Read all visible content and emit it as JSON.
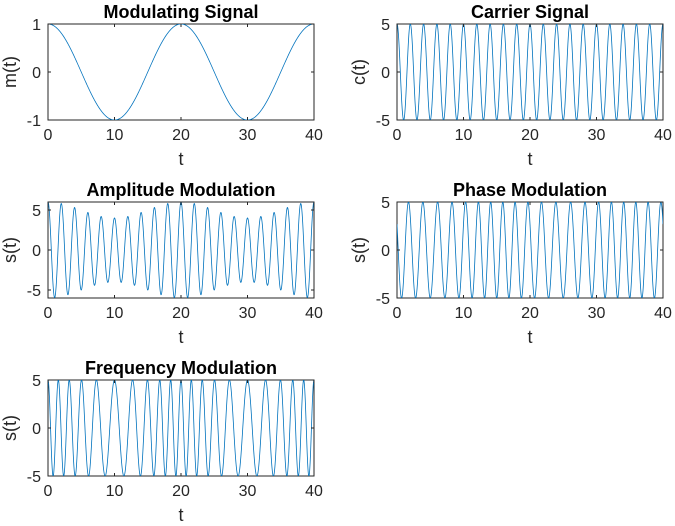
{
  "figure": {
    "background": "#ffffff",
    "line_color": "#0072BD",
    "axis_color": "#262626"
  },
  "chart_data": [
    {
      "type": "line",
      "title": "Modulating Signal",
      "xlabel": "t",
      "ylabel": "m(t)",
      "xlim": [
        0,
        40
      ],
      "ylim": [
        -1,
        1
      ],
      "xticks": [
        "0",
        "10",
        "20",
        "30",
        "40"
      ],
      "yticks": [
        "-1",
        "0",
        "1"
      ],
      "grid": false,
      "series": [
        {
          "formula": "cos(2*pi*t/20)",
          "amplitude": 1,
          "period": 20,
          "phase_deg": 0
        }
      ]
    },
    {
      "type": "line",
      "title": "Carrier Signal",
      "xlabel": "t",
      "ylabel": "c(t)",
      "xlim": [
        0,
        40
      ],
      "ylim": [
        -5,
        5
      ],
      "xticks": [
        "0",
        "10",
        "20",
        "30",
        "40"
      ],
      "yticks": [
        "-5",
        "0",
        "5"
      ],
      "grid": false,
      "series": [
        {
          "formula": "5*cos(2*pi*0.5*t)",
          "amplitude": 5,
          "carrier_freq": 0.5,
          "cycles": 20
        }
      ]
    },
    {
      "type": "line",
      "title": "Amplitude Modulation",
      "xlabel": "t",
      "ylabel": "s(t)",
      "xlim": [
        0,
        40
      ],
      "ylim": [
        -6,
        6
      ],
      "xticks": [
        "0",
        "10",
        "20",
        "30",
        "40"
      ],
      "yticks": [
        "-5",
        "0",
        "5"
      ],
      "grid": false,
      "series": [
        {
          "formula": "(5 + m(t))*cos(2*pi*0.5*t)",
          "envelope_max": 6,
          "envelope_min": 4,
          "carrier_freq": 0.5
        }
      ]
    },
    {
      "type": "line",
      "title": "Phase Modulation",
      "xlabel": "t",
      "ylabel": "s(t)",
      "xlim": [
        0,
        40
      ],
      "ylim": [
        -5,
        5
      ],
      "xticks": [
        "0",
        "10",
        "20",
        "30",
        "40"
      ],
      "yticks": [
        "-5",
        "0",
        "5"
      ],
      "grid": false,
      "series": [
        {
          "formula": "5*cos(2*pi*0.5*t + m(t))",
          "amplitude": 5,
          "carrier_freq": 0.5
        }
      ]
    },
    {
      "type": "line",
      "title": "Frequency Modulation",
      "xlabel": "t",
      "ylabel": "s(t)",
      "xlim": [
        0,
        40
      ],
      "ylim": [
        -5,
        5
      ],
      "xticks": [
        "0",
        "10",
        "20",
        "30",
        "40"
      ],
      "yticks": [
        "-5",
        "0",
        "5"
      ],
      "grid": false,
      "series": [
        {
          "formula": "5*cos(2*pi*0.5*t + 3*sin(2*pi*t/20))",
          "amplitude": 5,
          "carrier_freq": 0.5
        }
      ]
    }
  ]
}
